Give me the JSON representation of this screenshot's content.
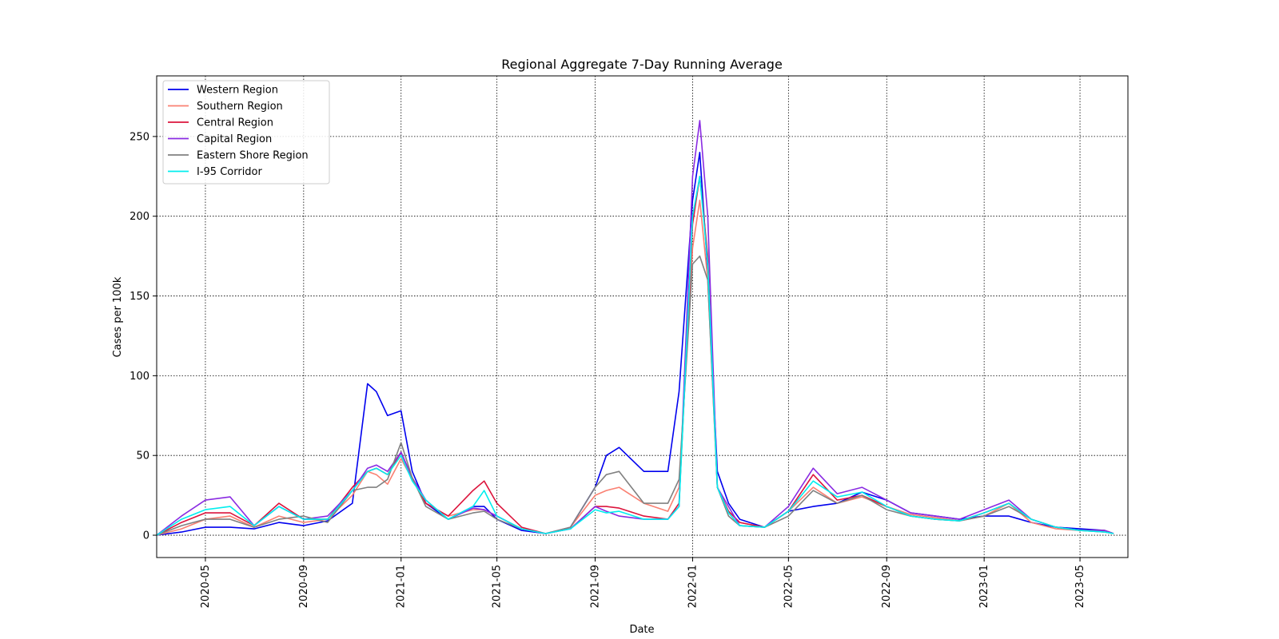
{
  "chart_data": {
    "type": "line",
    "title": "Regional Aggregate 7-Day Running Average",
    "xlabel": "Date",
    "ylabel": "Cases per 100k",
    "x_range": [
      "2020-03-01",
      "2023-06-30"
    ],
    "ylim": [
      -14,
      288
    ],
    "x_ticks": [
      "2020-05",
      "2020-09",
      "2021-01",
      "2021-05",
      "2021-09",
      "2022-01",
      "2022-05",
      "2022-09",
      "2023-01",
      "2023-05"
    ],
    "y_ticks": [
      0,
      50,
      100,
      150,
      200,
      250
    ],
    "grid": true,
    "legend_position": "top-left",
    "x": [
      "2020-03-01",
      "2020-04-01",
      "2020-05-01",
      "2020-06-01",
      "2020-07-01",
      "2020-08-01",
      "2020-09-01",
      "2020-10-01",
      "2020-11-01",
      "2020-11-20",
      "2020-12-01",
      "2020-12-15",
      "2021-01-01",
      "2021-01-15",
      "2021-02-01",
      "2021-03-01",
      "2021-04-01",
      "2021-04-15",
      "2021-05-01",
      "2021-06-01",
      "2021-07-01",
      "2021-08-01",
      "2021-09-01",
      "2021-09-15",
      "2021-10-01",
      "2021-11-01",
      "2021-12-01",
      "2021-12-15",
      "2022-01-01",
      "2022-01-10",
      "2022-01-20",
      "2022-02-01",
      "2022-02-15",
      "2022-03-01",
      "2022-04-01",
      "2022-05-01",
      "2022-06-01",
      "2022-07-01",
      "2022-08-01",
      "2022-09-01",
      "2022-10-01",
      "2022-11-01",
      "2022-12-01",
      "2023-01-01",
      "2023-02-01",
      "2023-03-01",
      "2023-04-01",
      "2023-05-01",
      "2023-06-01",
      "2023-06-12"
    ],
    "series": [
      {
        "name": "Western Region",
        "color": "#0000ee",
        "values": [
          0,
          2,
          5,
          5,
          4,
          8,
          6,
          9,
          20,
          95,
          90,
          75,
          78,
          40,
          20,
          10,
          18,
          18,
          10,
          3,
          1,
          5,
          30,
          50,
          55,
          40,
          40,
          90,
          210,
          240,
          165,
          40,
          20,
          10,
          5,
          15,
          18,
          20,
          27,
          22,
          14,
          12,
          10,
          12,
          12,
          8,
          5,
          4,
          3,
          1
        ]
      },
      {
        "name": "Southern Region",
        "color": "#fa8072",
        "values": [
          0,
          4,
          10,
          12,
          5,
          12,
          8,
          10,
          25,
          40,
          38,
          32,
          48,
          35,
          20,
          12,
          16,
          16,
          12,
          4,
          1,
          5,
          25,
          28,
          30,
          20,
          15,
          30,
          180,
          210,
          160,
          30,
          15,
          8,
          5,
          15,
          30,
          20,
          24,
          18,
          13,
          11,
          9,
          12,
          20,
          8,
          4,
          3,
          2,
          1
        ]
      },
      {
        "name": "Central Region",
        "color": "#dc143c",
        "values": [
          0,
          8,
          14,
          14,
          6,
          20,
          10,
          10,
          30,
          40,
          42,
          38,
          52,
          36,
          20,
          12,
          28,
          34,
          20,
          5,
          1,
          4,
          18,
          18,
          17,
          12,
          10,
          20,
          195,
          225,
          175,
          30,
          15,
          8,
          5,
          15,
          38,
          22,
          25,
          18,
          12,
          10,
          9,
          14,
          20,
          10,
          5,
          3,
          3,
          1
        ]
      },
      {
        "name": "Capital Region",
        "color": "#8a2be2",
        "values": [
          0,
          12,
          22,
          24,
          6,
          18,
          10,
          12,
          28,
          42,
          44,
          40,
          52,
          36,
          22,
          10,
          17,
          16,
          12,
          4,
          1,
          4,
          18,
          15,
          12,
          10,
          10,
          18,
          225,
          260,
          200,
          30,
          18,
          6,
          5,
          18,
          42,
          26,
          30,
          22,
          14,
          12,
          10,
          16,
          22,
          10,
          5,
          3,
          3,
          1
        ]
      },
      {
        "name": "Eastern Shore Region",
        "color": "#808080",
        "values": [
          0,
          6,
          10,
          10,
          5,
          10,
          12,
          8,
          28,
          30,
          30,
          35,
          58,
          36,
          18,
          10,
          14,
          15,
          10,
          4,
          1,
          5,
          30,
          38,
          40,
          20,
          20,
          35,
          170,
          175,
          160,
          30,
          12,
          6,
          5,
          12,
          28,
          20,
          25,
          16,
          12,
          10,
          9,
          12,
          18,
          10,
          5,
          3,
          2,
          1
        ]
      },
      {
        "name": "I-95 Corridor",
        "color": "#00eeee",
        "values": [
          0,
          10,
          16,
          18,
          6,
          18,
          10,
          10,
          28,
          40,
          42,
          38,
          50,
          34,
          22,
          10,
          18,
          28,
          12,
          4,
          1,
          4,
          16,
          14,
          15,
          10,
          10,
          18,
          200,
          225,
          170,
          30,
          14,
          6,
          5,
          15,
          34,
          24,
          27,
          18,
          12,
          10,
          9,
          14,
          20,
          10,
          5,
          3,
          2,
          1
        ]
      }
    ]
  }
}
